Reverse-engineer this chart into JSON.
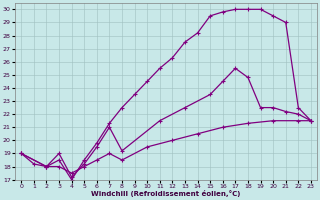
{
  "xlabel": "Windchill (Refroidissement éolien,°C)",
  "bg_color": "#c8e8e8",
  "line_color": "#800080",
  "xlim": [
    -0.5,
    23.5
  ],
  "ylim": [
    17,
    30.5
  ],
  "xtick_labels": [
    "0",
    "1",
    "2",
    "3",
    "4",
    "5",
    "6",
    "7",
    "8",
    "9",
    "10",
    "11",
    "12",
    "13",
    "14",
    "15",
    "16",
    "17",
    "18",
    "19",
    "20",
    "21",
    "22",
    "23"
  ],
  "xtick_vals": [
    0,
    1,
    2,
    3,
    4,
    5,
    6,
    7,
    8,
    9,
    10,
    11,
    12,
    13,
    14,
    15,
    16,
    17,
    18,
    19,
    20,
    21,
    22,
    23
  ],
  "ytick_vals": [
    17,
    18,
    19,
    20,
    21,
    22,
    23,
    24,
    25,
    26,
    27,
    28,
    29,
    30
  ],
  "curve1_x": [
    0,
    1,
    2,
    3,
    4,
    5,
    6,
    7,
    8,
    9,
    10,
    11,
    12,
    13,
    14,
    15,
    16,
    17,
    18,
    19,
    20,
    21,
    22,
    23
  ],
  "curve1_y": [
    19.0,
    18.2,
    18.0,
    18.5,
    17.0,
    18.5,
    19.8,
    21.3,
    22.5,
    23.5,
    24.5,
    25.5,
    26.3,
    27.5,
    28.2,
    29.5,
    29.8,
    30.0,
    30.0,
    30.0,
    29.5,
    29.0,
    22.5,
    21.5
  ],
  "curve2_x": [
    0,
    2,
    3,
    4,
    5,
    6,
    7,
    8,
    11,
    13,
    15,
    16,
    17,
    18,
    19,
    20,
    21,
    22,
    23
  ],
  "curve2_y": [
    19.0,
    18.0,
    19.0,
    17.2,
    18.2,
    19.5,
    21.0,
    19.2,
    21.5,
    22.5,
    23.5,
    24.5,
    25.5,
    24.8,
    22.5,
    22.5,
    22.2,
    22.0,
    21.5
  ],
  "curve3_x": [
    0,
    2,
    3,
    4,
    5,
    6,
    7,
    8,
    10,
    12,
    14,
    16,
    18,
    20,
    22,
    23
  ],
  "curve3_y": [
    19.0,
    18.0,
    18.0,
    17.5,
    18.0,
    18.5,
    19.0,
    18.5,
    19.5,
    20.0,
    20.5,
    21.0,
    21.3,
    21.5,
    21.5,
    21.5
  ]
}
